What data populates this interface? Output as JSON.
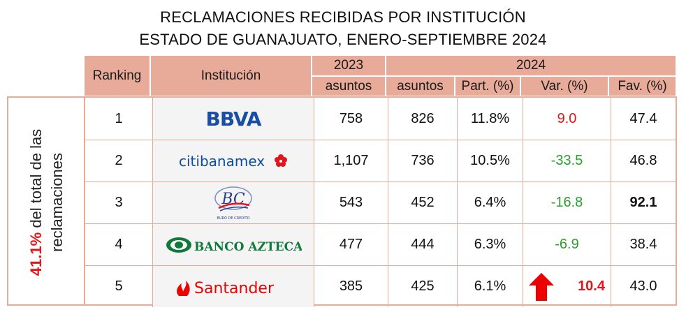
{
  "title": {
    "line1": "RECLAMACIONES RECIBIDAS POR INSTITUCIÓN",
    "line2": "ESTADO DE GUANAJUATO, ENERO-SEPTIEMBRE 2024"
  },
  "headers": {
    "ranking": "Ranking",
    "institucion": "Institución",
    "year_2023": "2023",
    "year_2024": "2024",
    "asuntos_2023": "asuntos",
    "asuntos_2024": "asuntos",
    "part": "Part. (%)",
    "var": "Var. (%)",
    "fav": "Fav. (%)"
  },
  "side_note": {
    "percent": "41.1%",
    "rest_line1": " del total de las",
    "line2": "reclamaciones"
  },
  "colors": {
    "header_bg": "#e8ab99",
    "positive_var": "#e5141a",
    "negative_var": "#27a22a"
  },
  "rows": [
    {
      "rank": "1",
      "institution": "BBVA",
      "logo_text": "BBVA",
      "asuntos_2023": "758",
      "asuntos_2024": "826",
      "part": "11.8%",
      "var": "9.0",
      "var_sign": "pos",
      "fav": "47.4",
      "fav_bold": false
    },
    {
      "rank": "2",
      "institution": "Citibanamex",
      "logo_text": "citibanamex",
      "asuntos_2023": "1,107",
      "asuntos_2024": "736",
      "part": "10.5%",
      "var": "-33.5",
      "var_sign": "neg",
      "fav": "46.8",
      "fav_bold": false
    },
    {
      "rank": "3",
      "institution": "Buró de Crédito",
      "logo_text": "BURO DE CREDITO",
      "asuntos_2023": "543",
      "asuntos_2024": "452",
      "part": "6.4%",
      "var": "-16.8",
      "var_sign": "neg",
      "fav": "92.1",
      "fav_bold": true
    },
    {
      "rank": "4",
      "institution": "Banco Azteca",
      "logo_text": "BANCO AZTECA",
      "asuntos_2023": "477",
      "asuntos_2024": "444",
      "part": "6.3%",
      "var": "-6.9",
      "var_sign": "neg",
      "fav": "38.4",
      "fav_bold": false
    },
    {
      "rank": "5",
      "institution": "Santander",
      "logo_text": "Santander",
      "asuntos_2023": "385",
      "asuntos_2024": "425",
      "part": "6.1%",
      "var": "10.4",
      "var_sign": "pos",
      "var_arrow": "up-arrow-icon",
      "fav": "43.0",
      "fav_bold": false
    }
  ]
}
